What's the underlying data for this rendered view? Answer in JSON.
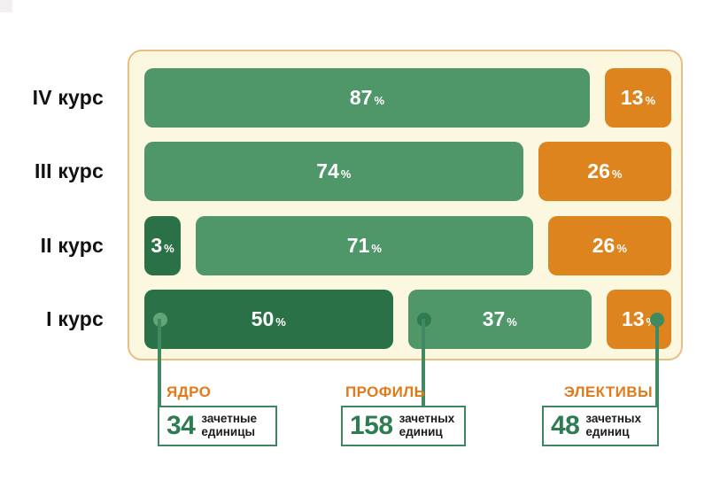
{
  "colors": {
    "core": "#2a7148",
    "profile": "#4f9669",
    "electives": "#dd841e",
    "panel_bg": "#fbf8df",
    "panel_border": "#e9be85",
    "connector": "#3f8a63",
    "box_border": "#3d8760",
    "legend_title": "#e07a1a",
    "legend_number": "#2e7d52",
    "row_label": "#121212",
    "corner_artifact": "#f1eff0"
  },
  "chart_data": {
    "type": "bar",
    "orientation": "horizontal",
    "stacked": true,
    "unit": "%",
    "value_labels": "inside",
    "legend_position": "bottom",
    "categories": [
      "IV курс",
      "III курс",
      "II курс",
      "I курс"
    ],
    "series": [
      {
        "name": "ЯДРО",
        "color": "#2a7148",
        "values": [
          0,
          0,
          3,
          50
        ]
      },
      {
        "name": "ПРОФИЛЬ",
        "color": "#4f9669",
        "values": [
          87,
          74,
          71,
          37
        ]
      },
      {
        "name": "ЭЛЕКТИВЫ",
        "color": "#dd841e",
        "values": [
          13,
          26,
          26,
          13
        ]
      }
    ]
  },
  "rows": [
    {
      "label": "IV курс",
      "segments": [
        {
          "value": 87,
          "type": "profile"
        },
        {
          "value": 13,
          "type": "electives"
        }
      ]
    },
    {
      "label": "III курс",
      "segments": [
        {
          "value": 74,
          "type": "profile"
        },
        {
          "value": 26,
          "type": "electives"
        }
      ]
    },
    {
      "label": "II курс",
      "segments": [
        {
          "value": 3,
          "type": "core",
          "min_width": 41
        },
        {
          "value": 71,
          "type": "profile"
        },
        {
          "value": 26,
          "type": "electives"
        }
      ]
    },
    {
      "label": "I курс",
      "segments": [
        {
          "value": 50,
          "type": "core",
          "dot": {
            "side": "left",
            "color": "#5fa578"
          }
        },
        {
          "value": 37,
          "type": "profile",
          "dot": {
            "side": "left",
            "color": "#2f7b4e"
          }
        },
        {
          "value": 13,
          "type": "electives",
          "dot": {
            "side": "right",
            "color": "#3e8a61"
          }
        }
      ]
    }
  ],
  "legend": {
    "items": [
      {
        "title": "ЯДРО",
        "number": "34",
        "caption": [
          "зачетные",
          "единицы"
        ]
      },
      {
        "title": "ПРОФИЛЬ",
        "number": "158",
        "caption": [
          "зачетных",
          "единиц"
        ]
      },
      {
        "title": "ЭЛЕКТИВЫ",
        "number": "48",
        "caption": [
          "зачетных",
          "единиц"
        ]
      }
    ]
  }
}
